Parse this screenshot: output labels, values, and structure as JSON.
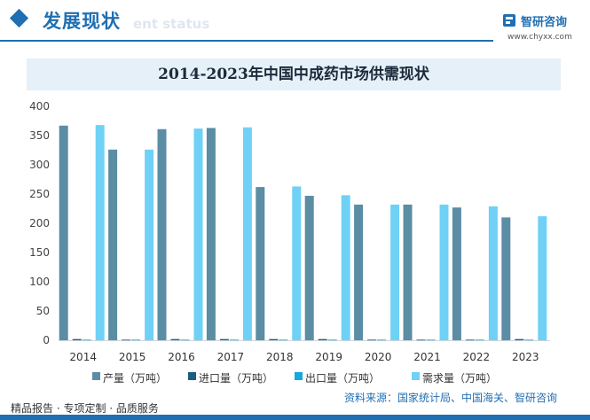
{
  "header": {
    "section_title": "发展现状",
    "section_subtitle": "ent status",
    "brand_name": "智研咨询",
    "brand_url": "www.chyxx.com"
  },
  "footer": {
    "tags": "精品报告 · 专项定制 · 品质服务",
    "source": "资料来源：国家统计局、中国海关、智研咨询"
  },
  "colors": {
    "accent": "#1f6fb2",
    "production": "#5b8da5",
    "import": "#1b5e7f",
    "export": "#14a9d8",
    "demand": "#6fd1f5"
  },
  "chart_data": {
    "type": "bar",
    "title": "2014-2023年中国中成药市场供需现状",
    "xlabel": "",
    "ylabel": "",
    "ylim": [
      0,
      400
    ],
    "yticks": [
      0,
      50,
      100,
      150,
      200,
      250,
      300,
      350,
      400
    ],
    "grid": false,
    "legend_position": "bottom",
    "categories": [
      "2014",
      "2015",
      "2016",
      "2017",
      "2018",
      "2019",
      "2020",
      "2021",
      "2022",
      "2023"
    ],
    "series": [
      {
        "name": "产量（万吨）",
        "values": [
          367,
          326,
          361,
          363,
          262,
          247,
          232,
          232,
          227,
          210
        ]
      },
      {
        "name": "进口量（万吨）",
        "values": [
          2,
          1,
          2,
          2,
          2,
          2,
          1,
          1,
          1,
          2
        ]
      },
      {
        "name": "出口量（万吨）",
        "values": [
          1,
          1,
          1,
          1,
          1,
          1,
          1,
          1,
          1,
          1
        ]
      },
      {
        "name": "需求量（万吨）",
        "values": [
          368,
          326,
          362,
          364,
          263,
          248,
          232,
          232,
          229,
          212
        ]
      }
    ]
  }
}
